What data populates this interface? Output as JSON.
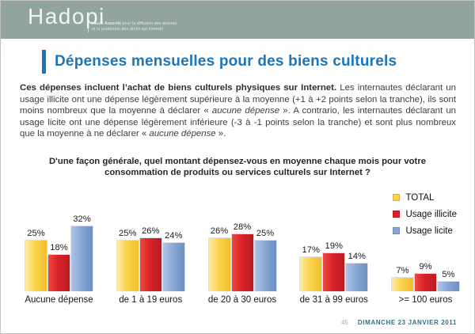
{
  "header": {
    "logo": "Hadopi",
    "tagline_bold": "Haute Autorité",
    "tagline_rest": " pour la diffusion des œuvres",
    "tagline_line2": "et la protection des droits sur internet"
  },
  "title": "Dépenses mensuelles pour des biens culturels",
  "intro": {
    "lead_bold": "Ces dépenses incluent l’achat de biens culturels physiques sur Internet.",
    "part1": " Les internautes déclarant un usage illicite ont une dépense légèrement supérieure à la moyenne (+1 à +2 points selon la tranche), ils sont moins nombreux que la moyenne à déclarer « ",
    "italic1": "aucune dépense",
    "part2": " ». A contrario, les internautes déclarant un usage licite ont une dépense légèrement inférieure (-3 à -1 points selon la tranche) et sont plus nombreux que la moyenne à ne déclarer « ",
    "italic2": "aucune dépense",
    "part3": " »."
  },
  "question": "D'une façon générale, quel montant dépensez-vous en moyenne chaque mois pour votre consommation de produits ou services culturels sur Internet ?",
  "chart_data": {
    "type": "bar",
    "title": "Dépenses mensuelles pour des biens culturels",
    "categories": [
      "Aucune dépense",
      "de 1 à 19 euros",
      "de 20 à 30 euros",
      "de 31 à 99 euros",
      ">= 100 euros"
    ],
    "series": [
      {
        "name": "TOTAL",
        "color": "#fad34b",
        "values": [
          25,
          25,
          26,
          17,
          7
        ]
      },
      {
        "name": "Usage illicite",
        "color": "#d8222a",
        "values": [
          18,
          26,
          28,
          19,
          9
        ]
      },
      {
        "name": "Usage licite",
        "color": "#86a5d4",
        "values": [
          32,
          24,
          25,
          14,
          5
        ]
      }
    ],
    "value_suffix": "%",
    "xlabel": "",
    "ylabel": "",
    "ylim": [
      0,
      35
    ],
    "grid": false,
    "legend_position": "top-right",
    "data_labels": true
  },
  "footer": {
    "page_number": "45",
    "date": "DIMANCHE 23 JANVIER 2011"
  },
  "colors": {
    "header_bg": "#91a49e",
    "title_blue": "#1c75bb",
    "footer_date_blue": "#35708e"
  }
}
